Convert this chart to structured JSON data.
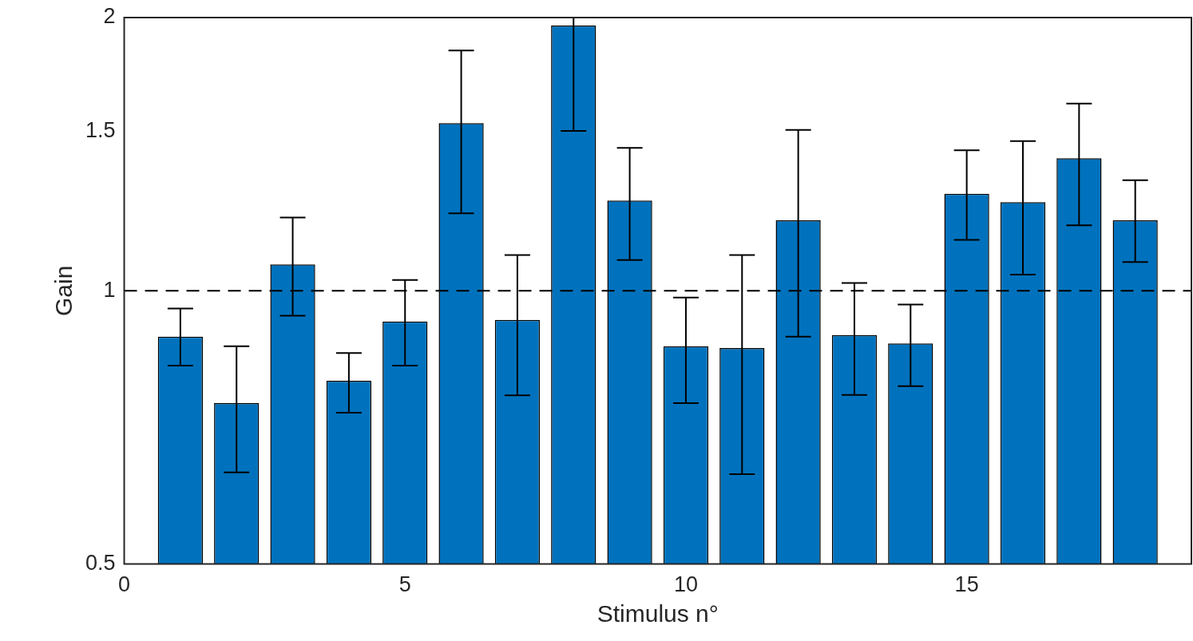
{
  "chart_data": {
    "type": "bar",
    "xlabel": "Stimulus n°",
    "ylabel": "Gain",
    "x": [
      1,
      2,
      3,
      4,
      5,
      6,
      7,
      8,
      9,
      10,
      11,
      12,
      13,
      14,
      15,
      16,
      17,
      18
    ],
    "values": [
      0.89,
      0.752,
      1.069,
      0.796,
      0.925,
      1.53,
      0.929,
      1.96,
      1.257,
      0.869,
      0.865,
      1.196,
      0.894,
      0.875,
      1.279,
      1.252,
      1.4,
      1.196
    ],
    "errors": [
      [
        0.827,
        0.956
      ],
      [
        0.631,
        0.869
      ],
      [
        0.939,
        1.204
      ],
      [
        0.734,
        0.854
      ],
      [
        0.827,
        1.028
      ],
      [
        1.217,
        1.84
      ],
      [
        0.767,
        1.095
      ],
      [
        1.5,
        2.0
      ],
      [
        1.081,
        1.437
      ],
      [
        0.752,
        0.983
      ],
      [
        0.628,
        1.095
      ],
      [
        0.89,
        1.504
      ],
      [
        0.768,
        1.02
      ],
      [
        0.785,
        0.966
      ],
      [
        1.138,
        1.428
      ],
      [
        1.042,
        1.462
      ],
      [
        1.181,
        1.608
      ],
      [
        1.076,
        1.324
      ]
    ],
    "color": "#0072bd",
    "log": "y",
    "xlim": [
      0,
      19
    ],
    "ylim": [
      0.5,
      2
    ],
    "xticks": [
      0,
      5,
      10,
      15
    ],
    "yticks": [
      0.5,
      1,
      1.5,
      2
    ],
    "grid": false,
    "ref_lines": [
      {
        "axis": "y",
        "value": 1,
        "line_style": "dashed",
        "color": "#000000"
      }
    ]
  }
}
